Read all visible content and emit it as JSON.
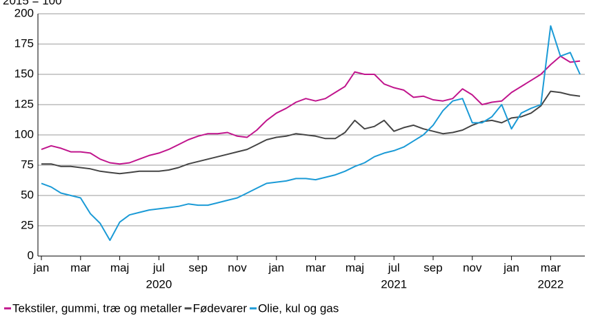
{
  "chart_data": {
    "type": "line",
    "unit": "2015 = 100",
    "categories": [
      "jan",
      null,
      null,
      null,
      "mar",
      null,
      null,
      null,
      "maj",
      null,
      null,
      null,
      "jul",
      null,
      null,
      null,
      "sep",
      null,
      null,
      null,
      "nov",
      null,
      null,
      null,
      "jan",
      null,
      null,
      null,
      "mar",
      null,
      null,
      null,
      "maj",
      null,
      null,
      null,
      "jul",
      null,
      null,
      null,
      "sep",
      null,
      null,
      null,
      "nov",
      null,
      null,
      null,
      "jan",
      null,
      null,
      null,
      "mar",
      null,
      null,
      null
    ],
    "year_labels": [
      null,
      null,
      null,
      null,
      null,
      null,
      null,
      null,
      null,
      null,
      null,
      null,
      "2020",
      null,
      null,
      null,
      null,
      null,
      null,
      null,
      null,
      null,
      null,
      null,
      null,
      null,
      null,
      null,
      null,
      null,
      null,
      null,
      null,
      null,
      null,
      null,
      "2021",
      null,
      null,
      null,
      null,
      null,
      null,
      null,
      null,
      null,
      null,
      null,
      null,
      null,
      null,
      null,
      "2022",
      null,
      null,
      null
    ],
    "series": [
      {
        "name": "Tekstiler, gummi, træ og metaller",
        "color": "#c0148c",
        "values": [
          88,
          91,
          89,
          86,
          86,
          85,
          80,
          77,
          76,
          77,
          80,
          83,
          85,
          88,
          92,
          96,
          99,
          101,
          101,
          102,
          99,
          98,
          104,
          112,
          118,
          122,
          127,
          130,
          128,
          130,
          135,
          140,
          152,
          150,
          150,
          142,
          139,
          137,
          131,
          132,
          129,
          128,
          130,
          138,
          133,
          125,
          127,
          128,
          135,
          140,
          145,
          150,
          158,
          165,
          160,
          161
        ]
      },
      {
        "name": "Fødevarer",
        "color": "#444444",
        "values": [
          76,
          76,
          74,
          74,
          73,
          72,
          70,
          69,
          68,
          69,
          70,
          70,
          70,
          71,
          73,
          76,
          78,
          80,
          82,
          84,
          86,
          88,
          92,
          96,
          98,
          99,
          101,
          100,
          99,
          97,
          97,
          102,
          112,
          105,
          107,
          112,
          103,
          106,
          108,
          105,
          103,
          101,
          102,
          104,
          108,
          111,
          112,
          110,
          114,
          115,
          118,
          124,
          136,
          135,
          133,
          132
        ]
      },
      {
        "name": "Olie, kul og gas",
        "color": "#1a9ad6",
        "values": [
          60,
          57,
          52,
          50,
          48,
          35,
          27,
          13,
          28,
          34,
          36,
          38,
          39,
          40,
          41,
          43,
          42,
          42,
          44,
          46,
          48,
          52,
          56,
          60,
          61,
          62,
          64,
          64,
          63,
          65,
          67,
          70,
          74,
          77,
          82,
          85,
          87,
          90,
          95,
          100,
          108,
          120,
          128,
          130,
          110,
          110,
          115,
          125,
          105,
          118,
          122,
          125,
          190,
          165,
          168,
          150
        ]
      }
    ],
    "ylim": [
      0,
      200
    ],
    "yticks": [
      0,
      25,
      50,
      75,
      100,
      125,
      150,
      175,
      200
    ],
    "grid": true
  }
}
